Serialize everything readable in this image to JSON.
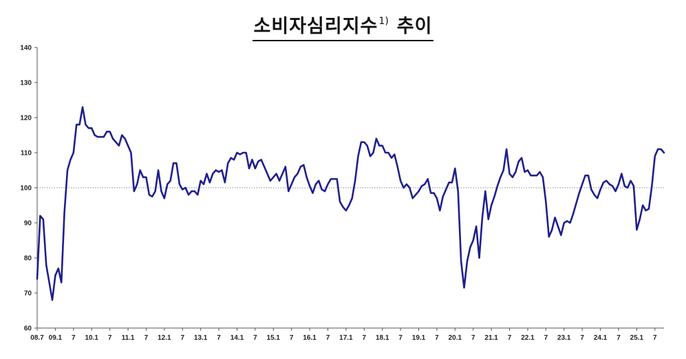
{
  "chart_data": {
    "type": "line",
    "title": "소비자심리지수",
    "title_superscript": "1)",
    "title_suffix": "추이",
    "xlabel": "",
    "ylabel": "",
    "ylim": [
      60,
      140
    ],
    "y_ticks": [
      60,
      70,
      80,
      90,
      100,
      110,
      120,
      130,
      140
    ],
    "x_tick_labels": [
      "08.7",
      "09.1",
      "7",
      "10.1",
      "7",
      "11.1",
      "7",
      "12.1",
      "7",
      "13.1",
      "7",
      "14.1",
      "7",
      "15.1",
      "7",
      "16.1",
      "7",
      "17.1",
      "7",
      "18.1",
      "7",
      "19.1",
      "7",
      "20.1",
      "7",
      "21.1",
      "7",
      "22.1",
      "7",
      "23.1",
      "7",
      "24.1",
      "7",
      "25.1",
      "7"
    ],
    "reference_line": 100,
    "grid": false,
    "line_color": "#1f1f8f",
    "series": [
      {
        "values": [
          74,
          92,
          91,
          78,
          73,
          68,
          75,
          77,
          73,
          93,
          105,
          108,
          110,
          118,
          118,
          123,
          118,
          117,
          117,
          115,
          114.5,
          114.5,
          114.5,
          116,
          116,
          114,
          113,
          112,
          115,
          114,
          112,
          110,
          99,
          101,
          105,
          103,
          103,
          98,
          97.5,
          99,
          105,
          99,
          97,
          101,
          102,
          107,
          107,
          101,
          99.5,
          100,
          98,
          99,
          99,
          98,
          102,
          101,
          104,
          101.5,
          104,
          105,
          104.5,
          105,
          101.5,
          107,
          108.5,
          108,
          110,
          109.5,
          110,
          110,
          105.5,
          108,
          105.5,
          107.5,
          108,
          106,
          104,
          102,
          103,
          104,
          102,
          104,
          106,
          99,
          101,
          103,
          104,
          106,
          106.5,
          103,
          100.5,
          98.5,
          101,
          102,
          99.5,
          99,
          101,
          102.5,
          102.5,
          102.5,
          96,
          94.5,
          93.5,
          95,
          97,
          102,
          109,
          113,
          113,
          112,
          109,
          110,
          114,
          112,
          112,
          110,
          110,
          108.5,
          109.5,
          106,
          102,
          100,
          101,
          100,
          97,
          98,
          99,
          100.5,
          101,
          102.5,
          98.5,
          98.5,
          97,
          93.5,
          97.5,
          99.5,
          101.5,
          101.5,
          105.5,
          99,
          79,
          71.5,
          79,
          83,
          85,
          89,
          80,
          91.5,
          99,
          91,
          95,
          97.5,
          100.5,
          103,
          105,
          111,
          104,
          103,
          104.5,
          107.5,
          108.5,
          104.5,
          105,
          103.5,
          103.5,
          103.5,
          104.5,
          103,
          96,
          86,
          88,
          91.5,
          89,
          86.5,
          90,
          90.5,
          90,
          92.5,
          95.5,
          98.5,
          101,
          103.5,
          103.5,
          99.5,
          98,
          97,
          99.5,
          101.5,
          102,
          101,
          100.5,
          99,
          101,
          104,
          100.5,
          100,
          102,
          100.5,
          88,
          91,
          95,
          93.5,
          94,
          100.5,
          109,
          111,
          111,
          110
        ]
      }
    ]
  }
}
